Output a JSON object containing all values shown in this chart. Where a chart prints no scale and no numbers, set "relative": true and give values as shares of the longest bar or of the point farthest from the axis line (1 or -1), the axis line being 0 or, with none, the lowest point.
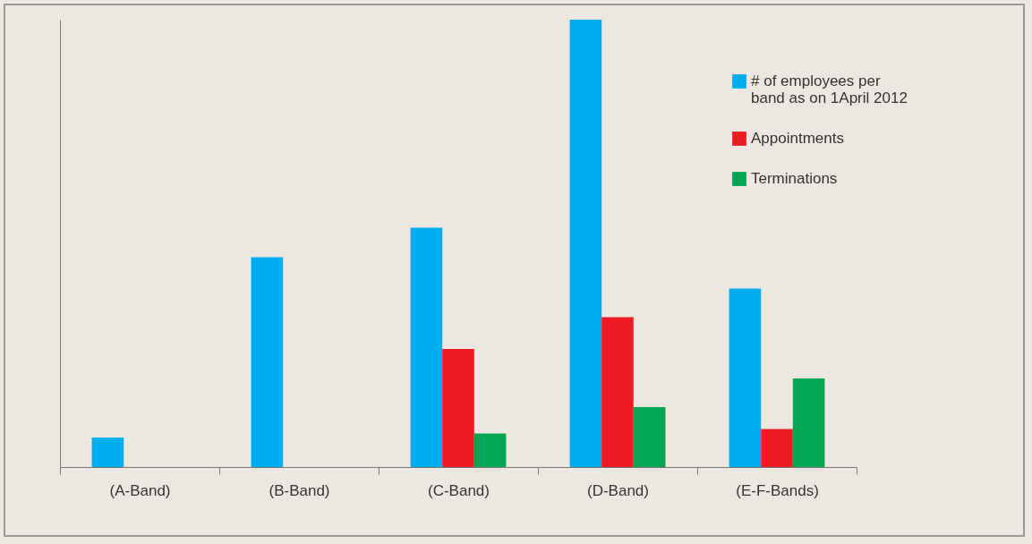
{
  "chart_data": {
    "type": "bar",
    "relative": true,
    "categories": [
      "(A-Band)",
      "(B-Band)",
      "(C-Band)",
      "(D-Band)",
      "(E-F-Bands)"
    ],
    "series": [
      {
        "name": "# of employees per band as on 1April 2012",
        "color": "#00adef",
        "values": [
          0.066,
          0.469,
          0.535,
          1,
          0.399
        ]
      },
      {
        "name": "Appointments",
        "color": "#ed1c24",
        "values": [
          null,
          null,
          0.264,
          0.335,
          0.085
        ]
      },
      {
        "name": "Terminations",
        "color": "#00a651",
        "values": [
          null,
          null,
          0.075,
          0.134,
          0.198
        ]
      }
    ],
    "legend": "top right",
    "grid": false
  }
}
